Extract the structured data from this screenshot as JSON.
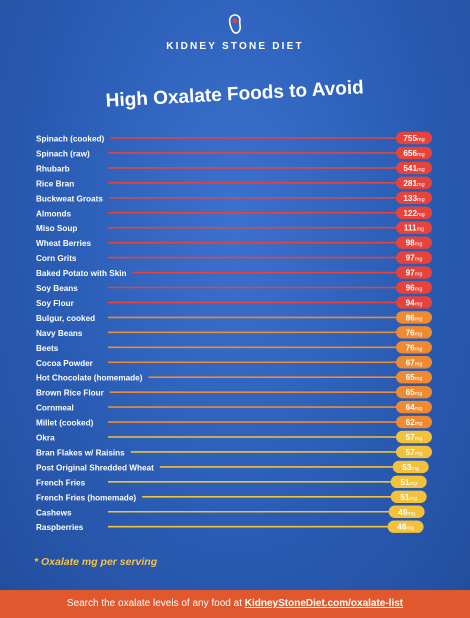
{
  "brand": {
    "name": "KIDNEY STONE DIET",
    "logo_icon": "kidney-stone-logo-icon"
  },
  "colors": {
    "background": "#2a5cb4",
    "high": "#e8433a",
    "medium": "#f08a30",
    "low": "#f3c13a",
    "footer": "#e2582e"
  },
  "chart_data": {
    "type": "bar",
    "title": "High Oxalate Foods to Avoid",
    "unit": "mg",
    "orientation": "horizontal",
    "categories": [
      "Spinach (cooked)",
      "Spinach (raw)",
      "Rhubarb",
      "Rice Bran",
      "Buckweat Groats",
      "Almonds",
      "Miso Soup",
      "Wheat Berries",
      "Corn Grits",
      "Baked Potato with Skin",
      "Soy Beans",
      "Soy Flour",
      "Bulgur, cooked",
      "Navy Beans",
      "Beets",
      "Cocoa Powder",
      "Hot Chocolate (homemade)",
      "Brown Rice Flour",
      "Cornmeal",
      "Millet (cooked)",
      "Okra",
      "Bran Flakes w/ Raisins",
      "Post Original Shredded Wheat",
      "French Fries",
      "French Fries (homemade)",
      "Cashews",
      "Raspberries"
    ],
    "values": [
      755,
      656,
      541,
      281,
      133,
      122,
      111,
      98,
      97,
      97,
      96,
      94,
      86,
      76,
      76,
      67,
      65,
      65,
      64,
      62,
      57,
      57,
      53,
      51,
      51,
      49,
      48
    ],
    "grid": false,
    "legend": "none"
  },
  "footnote": "* Oxalate mg per serving",
  "footer": {
    "text": "Search the oxalate levels of any food at",
    "link": "KidneyStoneDiet.com/oxalate-list"
  }
}
